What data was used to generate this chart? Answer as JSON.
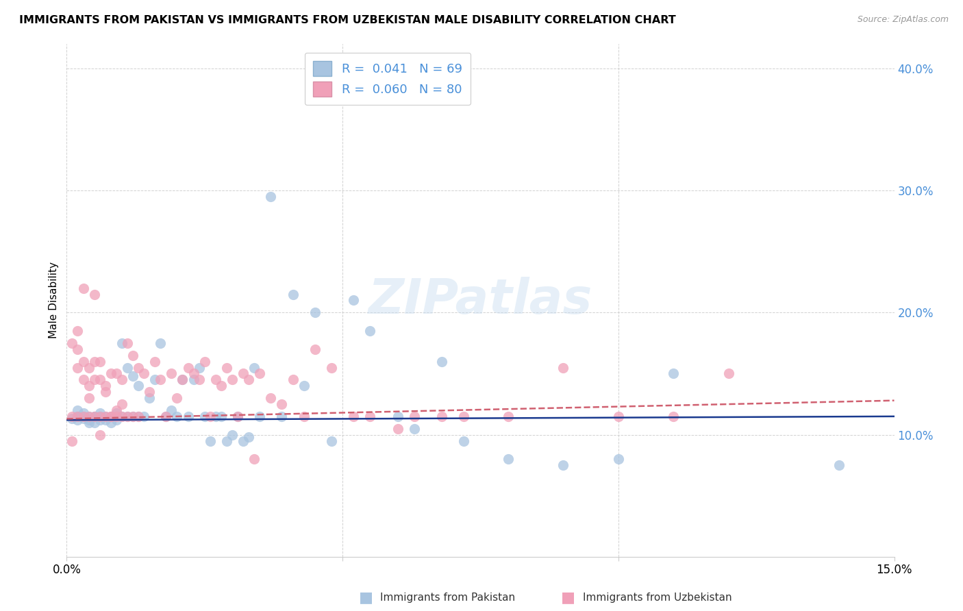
{
  "title": "IMMIGRANTS FROM PAKISTAN VS IMMIGRANTS FROM UZBEKISTAN MALE DISABILITY CORRELATION CHART",
  "source": "Source: ZipAtlas.com",
  "ylabel": "Male Disability",
  "yticks": [
    0.0,
    0.1,
    0.2,
    0.3,
    0.4
  ],
  "ytick_labels": [
    "",
    "10.0%",
    "20.0%",
    "30.0%",
    "40.0%"
  ],
  "xlim": [
    0.0,
    0.15
  ],
  "ylim": [
    0.0,
    0.42
  ],
  "color_pakistan": "#a8c4e0",
  "color_uzbekistan": "#f0a0b8",
  "trendline_pakistan_color": "#1a3a8f",
  "trendline_uzbekistan_color": "#d06070",
  "watermark_text": "ZIPatlas",
  "pakistan_x": [
    0.001,
    0.002,
    0.002,
    0.002,
    0.003,
    0.003,
    0.003,
    0.004,
    0.004,
    0.004,
    0.005,
    0.005,
    0.005,
    0.006,
    0.006,
    0.006,
    0.007,
    0.007,
    0.008,
    0.008,
    0.009,
    0.009,
    0.01,
    0.01,
    0.011,
    0.011,
    0.012,
    0.012,
    0.013,
    0.013,
    0.014,
    0.015,
    0.016,
    0.017,
    0.018,
    0.019,
    0.02,
    0.021,
    0.022,
    0.023,
    0.024,
    0.025,
    0.026,
    0.027,
    0.028,
    0.029,
    0.03,
    0.031,
    0.032,
    0.033,
    0.034,
    0.035,
    0.037,
    0.039,
    0.041,
    0.043,
    0.045,
    0.048,
    0.052,
    0.055,
    0.06,
    0.063,
    0.068,
    0.072,
    0.08,
    0.09,
    0.1,
    0.11,
    0.14
  ],
  "pakistan_y": [
    0.113,
    0.115,
    0.12,
    0.112,
    0.118,
    0.113,
    0.115,
    0.115,
    0.112,
    0.11,
    0.115,
    0.11,
    0.115,
    0.118,
    0.112,
    0.115,
    0.115,
    0.112,
    0.115,
    0.11,
    0.118,
    0.112,
    0.175,
    0.115,
    0.155,
    0.115,
    0.148,
    0.115,
    0.14,
    0.115,
    0.115,
    0.13,
    0.145,
    0.175,
    0.115,
    0.12,
    0.115,
    0.145,
    0.115,
    0.145,
    0.155,
    0.115,
    0.095,
    0.115,
    0.115,
    0.095,
    0.1,
    0.115,
    0.095,
    0.098,
    0.155,
    0.115,
    0.295,
    0.115,
    0.215,
    0.14,
    0.2,
    0.095,
    0.21,
    0.185,
    0.115,
    0.105,
    0.16,
    0.095,
    0.08,
    0.075,
    0.08,
    0.15,
    0.075
  ],
  "uzbekistan_x": [
    0.001,
    0.001,
    0.002,
    0.002,
    0.002,
    0.003,
    0.003,
    0.003,
    0.004,
    0.004,
    0.004,
    0.005,
    0.005,
    0.005,
    0.006,
    0.006,
    0.006,
    0.007,
    0.007,
    0.008,
    0.008,
    0.009,
    0.009,
    0.01,
    0.01,
    0.011,
    0.011,
    0.012,
    0.012,
    0.013,
    0.013,
    0.014,
    0.015,
    0.016,
    0.017,
    0.018,
    0.019,
    0.02,
    0.021,
    0.022,
    0.023,
    0.024,
    0.025,
    0.026,
    0.027,
    0.028,
    0.029,
    0.03,
    0.031,
    0.032,
    0.033,
    0.034,
    0.035,
    0.037,
    0.039,
    0.041,
    0.043,
    0.045,
    0.048,
    0.052,
    0.055,
    0.06,
    0.063,
    0.068,
    0.072,
    0.08,
    0.09,
    0.1,
    0.11,
    0.12,
    0.001,
    0.002,
    0.003,
    0.004,
    0.005,
    0.006,
    0.007,
    0.008,
    0.009,
    0.01
  ],
  "uzbekistan_y": [
    0.115,
    0.175,
    0.17,
    0.155,
    0.185,
    0.16,
    0.145,
    0.115,
    0.14,
    0.13,
    0.155,
    0.16,
    0.115,
    0.145,
    0.145,
    0.115,
    0.16,
    0.14,
    0.135,
    0.15,
    0.115,
    0.12,
    0.15,
    0.125,
    0.145,
    0.175,
    0.115,
    0.165,
    0.115,
    0.155,
    0.115,
    0.15,
    0.135,
    0.16,
    0.145,
    0.115,
    0.15,
    0.13,
    0.145,
    0.155,
    0.15,
    0.145,
    0.16,
    0.115,
    0.145,
    0.14,
    0.155,
    0.145,
    0.115,
    0.15,
    0.145,
    0.08,
    0.15,
    0.13,
    0.125,
    0.145,
    0.115,
    0.17,
    0.155,
    0.115,
    0.115,
    0.105,
    0.115,
    0.115,
    0.115,
    0.115,
    0.155,
    0.115,
    0.115,
    0.15,
    0.095,
    0.115,
    0.22,
    0.115,
    0.215,
    0.1,
    0.115,
    0.115,
    0.115,
    0.115
  ],
  "pak_trend_x": [
    0.0,
    0.15
  ],
  "pak_trend_y": [
    0.113,
    0.115
  ],
  "uzb_trend_x": [
    0.0,
    0.15
  ],
  "uzb_trend_y": [
    0.113,
    0.128
  ]
}
